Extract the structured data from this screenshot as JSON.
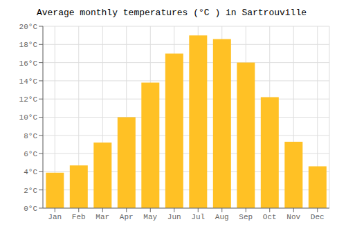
{
  "chart_data": {
    "type": "bar",
    "title": "Average monthly temperatures (°C ) in Sartrouville",
    "categories": [
      "Jan",
      "Feb",
      "Mar",
      "Apr",
      "May",
      "Jun",
      "Jul",
      "Aug",
      "Sep",
      "Oct",
      "Nov",
      "Dec"
    ],
    "values": [
      3.9,
      4.7,
      7.2,
      10.0,
      13.8,
      17.0,
      19.0,
      18.6,
      16.0,
      12.2,
      7.3,
      4.6
    ],
    "color": "#FFC125",
    "ylim": [
      0,
      20
    ],
    "yticks": [
      {
        "value": 0,
        "label": "0°C"
      },
      {
        "value": 2,
        "label": "2°C"
      },
      {
        "value": 4,
        "label": "4°C"
      },
      {
        "value": 6,
        "label": "6°C"
      },
      {
        "value": 8,
        "label": "8°C"
      },
      {
        "value": 10,
        "label": "10°C"
      },
      {
        "value": 12,
        "label": "12°C"
      },
      {
        "value": 14,
        "label": "14°C"
      },
      {
        "value": 16,
        "label": "16°C"
      },
      {
        "value": 18,
        "label": "18°C"
      },
      {
        "value": 20,
        "label": "20°C"
      }
    ],
    "grid": true
  }
}
